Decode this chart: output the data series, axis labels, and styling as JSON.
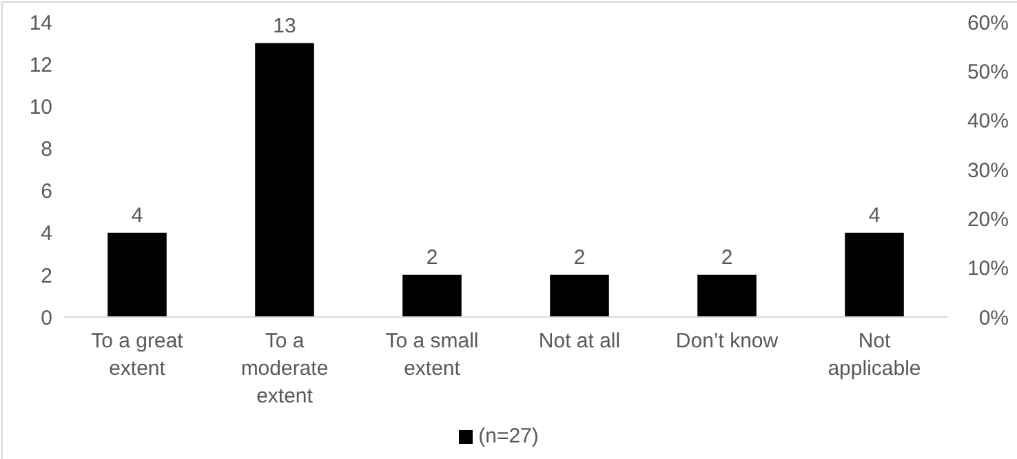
{
  "chart_data": {
    "type": "bar",
    "categories": [
      "To a great extent",
      "To a moderate extent",
      "To a small extent",
      "Not at all",
      "Don’t know",
      "Not applicable"
    ],
    "series": [
      {
        "name": "(n=27)",
        "color": "#000000",
        "values": [
          4,
          13,
          2,
          2,
          2,
          4
        ]
      }
    ],
    "ylim": [
      0,
      14
    ],
    "yticks": [
      0,
      2,
      4,
      6,
      8,
      10,
      12,
      14
    ],
    "y2lim": [
      0,
      60
    ],
    "y2ticks": [
      {
        "value": 0,
        "label": "0%"
      },
      {
        "value": 10,
        "label": "10%"
      },
      {
        "value": 20,
        "label": "20%"
      },
      {
        "value": 30,
        "label": "30%"
      },
      {
        "value": 40,
        "label": "40%"
      },
      {
        "value": 50,
        "label": "50%"
      },
      {
        "value": 60,
        "label": "60%"
      }
    ],
    "data_labels": true,
    "grid": false,
    "legend": "bottom"
  }
}
